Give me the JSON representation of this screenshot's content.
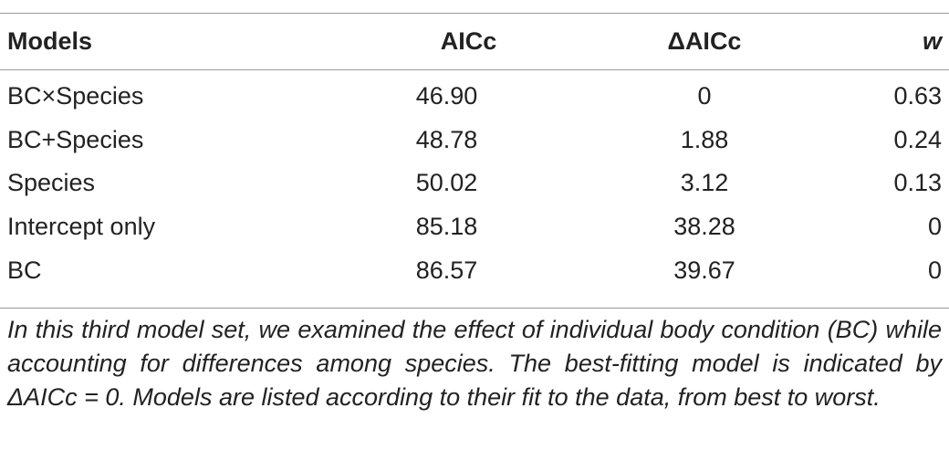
{
  "table": {
    "headers": {
      "model": "Models",
      "aicc": "AICc",
      "delta_aicc": "ΔAICc",
      "weight": "w"
    },
    "rows": [
      {
        "model": "BC×Species",
        "aicc": "46.90",
        "delta_aicc": "0",
        "weight": "0.63"
      },
      {
        "model": "BC+Species",
        "aicc": "48.78",
        "delta_aicc": "1.88",
        "weight": "0.24"
      },
      {
        "model": "Species",
        "aicc": "50.02",
        "delta_aicc": "3.12",
        "weight": "0.13"
      },
      {
        "model": "Intercept only",
        "aicc": "85.18",
        "delta_aicc": "38.28",
        "weight": "0"
      },
      {
        "model": "BC",
        "aicc": "86.57",
        "delta_aicc": "39.67",
        "weight": "0"
      }
    ]
  },
  "caption": "In this third model set, we examined the effect of individual body condition (BC) while accounting for differences among species. The best-fitting model is indicated by ΔAICc = 0. Models are listed according to their fit to the data, from best to worst."
}
